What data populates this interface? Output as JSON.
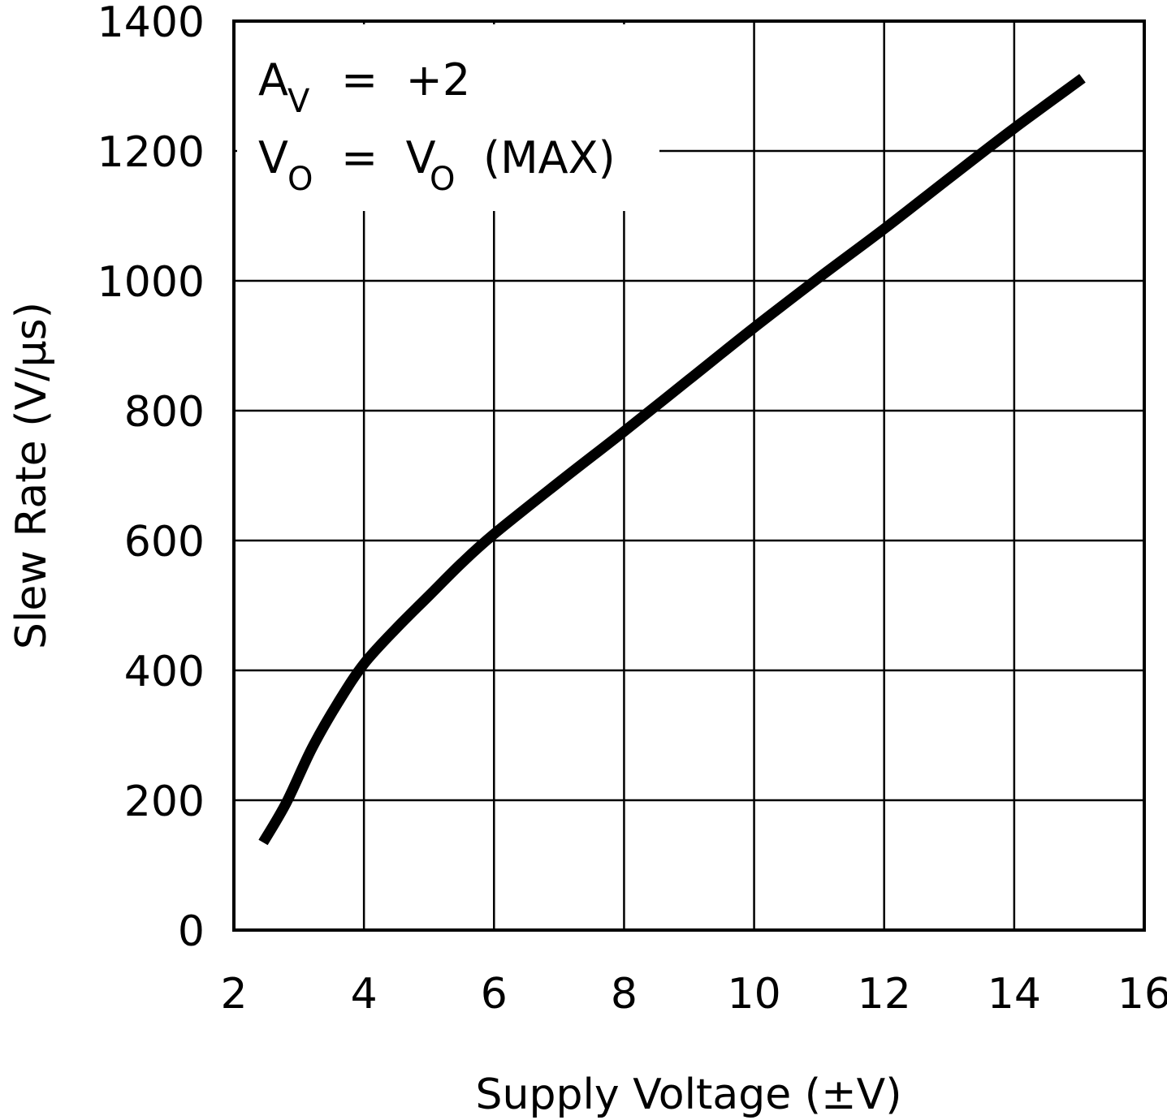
{
  "chart_data": {
    "type": "line",
    "xlabel": "Supply Voltage (±V)",
    "ylabel": "Slew Rate (V/μs)",
    "xlim": [
      2,
      16
    ],
    "ylim": [
      0,
      1400
    ],
    "x_ticks": [
      "2",
      "4",
      "6",
      "8",
      "10",
      "12",
      "14",
      "16"
    ],
    "y_ticks": [
      "0",
      "200",
      "400",
      "600",
      "800",
      "1000",
      "1200",
      "1400"
    ],
    "grid": true,
    "series": [
      {
        "x": [
          2.45,
          2.8,
          3.2,
          3.6,
          4.0,
          4.5,
          5.0,
          5.5,
          6.0,
          7.0,
          8.0,
          9.0,
          10.0,
          11.0,
          12.0,
          13.0,
          14.0,
          15.05
        ],
        "y": [
          135,
          195,
          280,
          350,
          410,
          465,
          515,
          565,
          610,
          690,
          768,
          848,
          928,
          1005,
          1080,
          1158,
          1235,
          1312
        ]
      }
    ],
    "annotations": {
      "line1": {
        "main": "A",
        "sub": "V",
        "rest": "=  +2"
      },
      "line2": {
        "main": "V",
        "sub": "O",
        "mid": "=  V",
        "sub2": "O",
        "rest": "(MAX)"
      }
    }
  }
}
